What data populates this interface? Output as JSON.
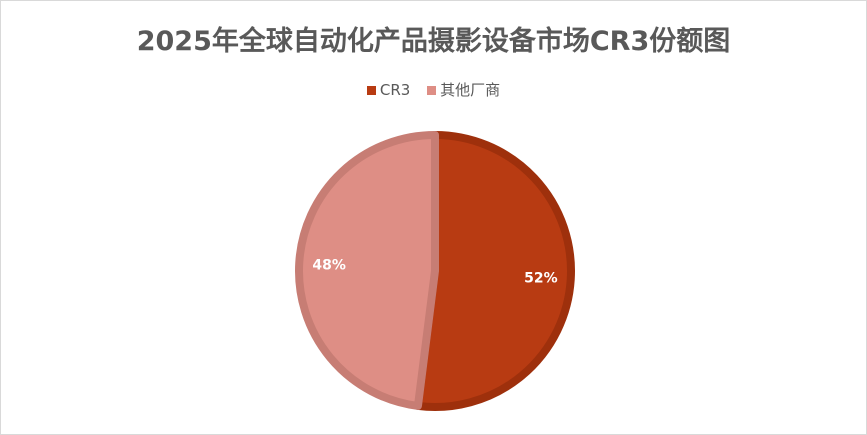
{
  "chart_data": {
    "type": "pie",
    "title": "2025年全球自动化产品摄影设备市场CR3份额图",
    "legend_position": "top",
    "slices": [
      {
        "name": "CR3",
        "value": 52,
        "label": "52%",
        "color": "#B83B12",
        "border": "#9E300C"
      },
      {
        "name": "其他厂商",
        "value": 48,
        "label": "48%",
        "color": "#DE8E85",
        "border": "#C77D74"
      }
    ]
  }
}
